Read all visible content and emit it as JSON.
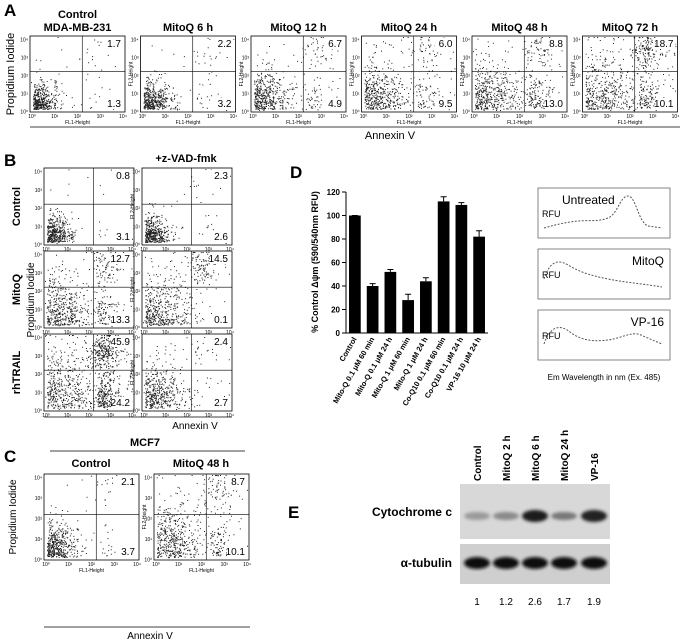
{
  "flow_ticks": [
    "10⁰",
    "10¹",
    "10²",
    "10³",
    "10⁴"
  ],
  "flow_x_axis_label": "FL1-Height",
  "flow_y_axis_label": "FL2-Height",
  "panel_a": {
    "label": "A",
    "y_label": "Propidium Iodide",
    "x_label": "Annexin V",
    "plots": [
      {
        "title_lines": [
          "Control",
          "MDA-MB-231"
        ],
        "upper_right": "1.7",
        "lower_right": "1.3"
      },
      {
        "title_lines": [
          "MitoQ 6 h"
        ],
        "upper_right": "2.2",
        "lower_right": "3.2"
      },
      {
        "title_lines": [
          "MitoQ 12 h"
        ],
        "upper_right": "6.7",
        "lower_right": "4.9"
      },
      {
        "title_lines": [
          "MitoQ 24 h"
        ],
        "upper_right": "6.0",
        "lower_right": "9.5"
      },
      {
        "title_lines": [
          "MitoQ 48 h"
        ],
        "upper_right": "8.8",
        "lower_right": "13.0"
      },
      {
        "title_lines": [
          "MitoQ 72 h"
        ],
        "upper_right": "18.7",
        "lower_right": "10.1"
      }
    ]
  },
  "panel_b": {
    "label": "B",
    "column_header": "+z-VAD-fmk",
    "y_label": "Propidium Iodide",
    "x_label": "Annexin V",
    "rows": [
      {
        "label": "Control",
        "plots": [
          {
            "upper_right": "0.8",
            "lower_right": "3.1"
          },
          {
            "upper_right": "2.3",
            "lower_right": "2.6"
          }
        ]
      },
      {
        "label": "MitoQ",
        "plots": [
          {
            "upper_right": "12.7",
            "lower_right": "13.3"
          },
          {
            "upper_right": "14.5",
            "lower_right": "0.1"
          }
        ]
      },
      {
        "label": "rhTRAIL",
        "plots": [
          {
            "upper_right": "45.9",
            "lower_right": "24.2"
          },
          {
            "upper_right": "2.4",
            "lower_right": "2.7"
          }
        ]
      }
    ]
  },
  "panel_c": {
    "label": "C",
    "cell_line": "MCF7",
    "y_label": "Propidium Iodide",
    "x_label": "Annexin V",
    "plots": [
      {
        "title": "Control",
        "upper_right": "2.1",
        "lower_right": "3.7"
      },
      {
        "title": "MitoQ 48 h",
        "upper_right": "8.7",
        "lower_right": "10.1"
      }
    ]
  },
  "panel_d": {
    "label": "D",
    "chart": {
      "type": "bar",
      "y_label": "% Control Δψm (590/540nm RFU)",
      "categories": [
        "Control",
        "Mito-Q 0.1 μM 60 min",
        "Mito-Q 0.1 μM 24 h",
        "Mito-Q 1 μM 60 min",
        "Mito-Q 1 μM 24 h",
        "Co-Q10 0.1 μM 60 min",
        "Co-Q10 0.1 μM 24 h",
        "VP-16 10 μM 24 h"
      ],
      "values": [
        100,
        40,
        52,
        28,
        44,
        112,
        109,
        82
      ],
      "errors": [
        0,
        2,
        2,
        5,
        3,
        4,
        2,
        5
      ],
      "color": "#000000",
      "ylim": [
        0,
        120
      ],
      "yticks": [
        0,
        20,
        40,
        60,
        80,
        100,
        120
      ]
    },
    "insets": [
      {
        "title": "Untreated",
        "y_label": "RFU"
      },
      {
        "title": "MitoQ",
        "y_label": "RFU"
      },
      {
        "title": "VP-16",
        "y_label": "RFU"
      }
    ],
    "inset_x_label": "Em Wavelength in nm (Ex. 485)"
  },
  "panel_e": {
    "label": "E",
    "lanes": [
      "Control",
      "MitoQ 2 h",
      "MitoQ 6 h",
      "MitoQ 24 h",
      "VP-16"
    ],
    "rows": [
      "Cytochrome c",
      "α-tubulin"
    ],
    "quantification": [
      "1",
      "1.2",
      "2.6",
      "1.7",
      "1.9"
    ]
  }
}
